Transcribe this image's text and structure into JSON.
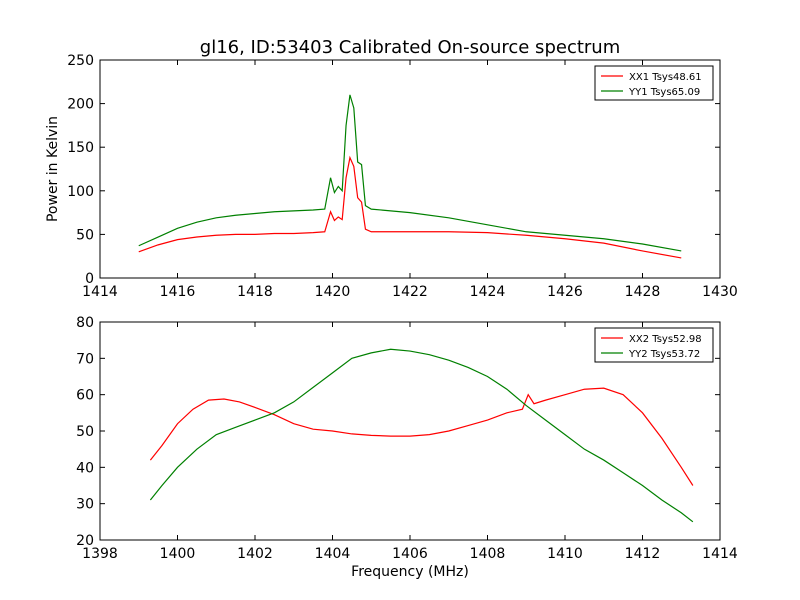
{
  "figure": {
    "title": "gl16, ID:53403 Calibrated On-source spectrum"
  },
  "chart_data": [
    {
      "type": "line",
      "title": "gl16, ID:53403 Calibrated On-source spectrum",
      "xlabel": "",
      "ylabel": "Power in Kelvin",
      "xlim": [
        1414,
        1430
      ],
      "ylim": [
        0,
        250
      ],
      "xticks": [
        1414,
        1416,
        1418,
        1420,
        1422,
        1424,
        1426,
        1428,
        1430
      ],
      "yticks": [
        0,
        50,
        100,
        150,
        200,
        250
      ],
      "legend": "top-right",
      "grid": false,
      "series": [
        {
          "name": "XX1 Tsys48.61",
          "color": "#ff0000",
          "x": [
            1415.0,
            1415.5,
            1416.0,
            1416.5,
            1417.0,
            1417.5,
            1418.0,
            1418.5,
            1419.0,
            1419.5,
            1419.8,
            1419.95,
            1420.05,
            1420.15,
            1420.25,
            1420.35,
            1420.45,
            1420.55,
            1420.65,
            1420.75,
            1420.85,
            1421.0,
            1421.5,
            1422.0,
            1423.0,
            1424.0,
            1425.0,
            1426.0,
            1427.0,
            1428.0,
            1429.0
          ],
          "y": [
            30,
            38,
            44,
            47,
            49,
            50,
            50,
            51,
            51,
            52,
            53,
            76,
            66,
            70,
            67,
            115,
            138,
            128,
            92,
            87,
            56,
            53,
            53,
            53,
            53,
            52,
            49,
            45,
            40,
            31,
            23
          ]
        },
        {
          "name": "YY1 Tsys65.09",
          "color": "#008000",
          "x": [
            1415.0,
            1415.5,
            1416.0,
            1416.5,
            1417.0,
            1417.5,
            1418.0,
            1418.5,
            1419.0,
            1419.5,
            1419.8,
            1419.95,
            1420.05,
            1420.15,
            1420.25,
            1420.35,
            1420.45,
            1420.55,
            1420.65,
            1420.75,
            1420.85,
            1421.0,
            1421.5,
            1422.0,
            1423.0,
            1424.0,
            1425.0,
            1426.0,
            1427.0,
            1428.0,
            1429.0
          ],
          "y": [
            37,
            47,
            57,
            64,
            69,
            72,
            74,
            76,
            77,
            78,
            79,
            115,
            98,
            105,
            100,
            175,
            210,
            195,
            133,
            130,
            83,
            79,
            77,
            75,
            69,
            61,
            53,
            49,
            45,
            39,
            31
          ]
        }
      ]
    },
    {
      "type": "line",
      "title": "",
      "xlabel": "Frequency (MHz)",
      "ylabel": "",
      "xlim": [
        1398,
        1414
      ],
      "ylim": [
        20,
        80
      ],
      "xticks": [
        1398,
        1400,
        1402,
        1404,
        1406,
        1408,
        1410,
        1412,
        1414
      ],
      "yticks": [
        20,
        30,
        40,
        50,
        60,
        70,
        80
      ],
      "legend": "top-right",
      "grid": false,
      "series": [
        {
          "name": "XX2 Tsys52.98",
          "color": "#ff0000",
          "x": [
            1399.3,
            1399.6,
            1400.0,
            1400.4,
            1400.8,
            1401.2,
            1401.6,
            1402.0,
            1402.5,
            1403.0,
            1403.5,
            1404.0,
            1404.5,
            1405.0,
            1405.5,
            1406.0,
            1406.5,
            1407.0,
            1407.5,
            1408.0,
            1408.5,
            1408.9,
            1409.05,
            1409.2,
            1409.5,
            1410.0,
            1410.5,
            1411.0,
            1411.5,
            1412.0,
            1412.5,
            1413.0,
            1413.3
          ],
          "y": [
            42,
            46,
            52,
            56,
            58.5,
            58.8,
            58,
            56.5,
            54.5,
            52,
            50.5,
            50,
            49.2,
            48.8,
            48.6,
            48.6,
            49,
            50,
            51.5,
            53,
            55,
            56,
            60,
            57.5,
            58.5,
            60,
            61.5,
            61.8,
            60,
            55,
            48,
            40,
            35
          ]
        },
        {
          "name": "YY2 Tsys53.72",
          "color": "#008000",
          "x": [
            1399.3,
            1399.6,
            1400.0,
            1400.5,
            1401.0,
            1401.5,
            1402.0,
            1402.5,
            1403.0,
            1403.5,
            1404.0,
            1404.5,
            1405.0,
            1405.5,
            1406.0,
            1406.5,
            1407.0,
            1407.5,
            1408.0,
            1408.5,
            1409.0,
            1409.5,
            1410.0,
            1410.5,
            1411.0,
            1411.5,
            1412.0,
            1412.5,
            1413.0,
            1413.3
          ],
          "y": [
            31,
            35,
            40,
            45,
            49,
            51,
            53,
            55,
            58,
            62,
            66,
            70,
            71.5,
            72.5,
            72,
            71,
            69.5,
            67.5,
            65,
            61.5,
            57,
            53,
            49,
            45,
            42,
            38.5,
            35,
            31,
            27.5,
            25
          ]
        }
      ]
    }
  ]
}
